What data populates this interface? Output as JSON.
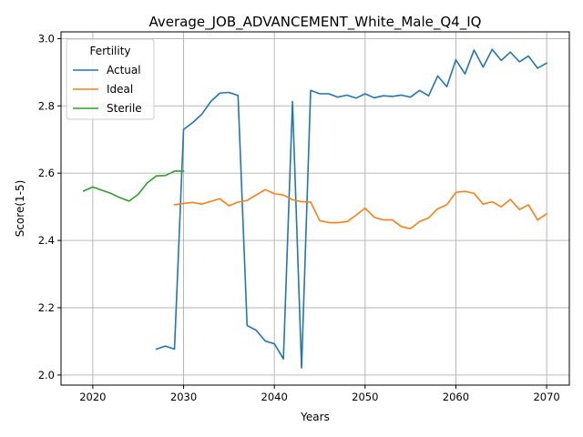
{
  "chart_data": {
    "type": "line",
    "title": "Average_JOB_ADVANCEMENT_White_Male_Q4_IQ",
    "xlabel": "Years",
    "ylabel": "Score(1-5)",
    "xlim": [
      2016.5,
      2072.5
    ],
    "ylim": [
      1.97,
      3.02
    ],
    "xticks": [
      2020,
      2030,
      2040,
      2050,
      2060,
      2070
    ],
    "yticks": [
      2.0,
      2.2,
      2.4,
      2.6,
      2.8,
      3.0
    ],
    "xtick_labels": [
      "2020",
      "2030",
      "2040",
      "2050",
      "2060",
      "2070"
    ],
    "ytick_labels": [
      "2.0",
      "2.2",
      "2.4",
      "2.6",
      "2.8",
      "3.0"
    ],
    "grid": true,
    "legend": {
      "title": "Fertility",
      "placement": "top-left"
    },
    "series": [
      {
        "name": "Actual",
        "color": "#1f77b4",
        "x": [
          2027,
          2028,
          2029,
          2030,
          2031,
          2032,
          2033,
          2034,
          2035,
          2036,
          2037,
          2038,
          2039,
          2040,
          2041,
          2042,
          2043,
          2044,
          2045,
          2046,
          2047,
          2048,
          2049,
          2050,
          2051,
          2052,
          2053,
          2054,
          2055,
          2056,
          2057,
          2058,
          2059,
          2060,
          2061,
          2062,
          2063,
          2064,
          2065,
          2066,
          2067,
          2068,
          2069,
          2070
        ],
        "y": [
          2.077,
          2.086,
          2.077,
          2.73,
          2.75,
          2.775,
          2.813,
          2.838,
          2.84,
          2.831,
          2.147,
          2.133,
          2.101,
          2.093,
          2.048,
          2.813,
          2.021,
          2.846,
          2.836,
          2.836,
          2.826,
          2.832,
          2.823,
          2.836,
          2.824,
          2.83,
          2.828,
          2.832,
          2.826,
          2.846,
          2.83,
          2.889,
          2.857,
          2.937,
          2.895,
          2.966,
          2.915,
          2.968,
          2.935,
          2.96,
          2.931,
          2.948,
          2.912,
          2.927
        ]
      },
      {
        "name": "Ideal",
        "color": "#ff7f0e",
        "x": [
          2029,
          2030,
          2031,
          2032,
          2033,
          2034,
          2035,
          2036,
          2037,
          2038,
          2039,
          2040,
          2041,
          2042,
          2043,
          2044,
          2045,
          2046,
          2047,
          2048,
          2049,
          2050,
          2051,
          2052,
          2053,
          2054,
          2055,
          2056,
          2057,
          2058,
          2059,
          2060,
          2061,
          2062,
          2063,
          2064,
          2065,
          2066,
          2067,
          2068,
          2069,
          2070
        ],
        "y": [
          2.506,
          2.51,
          2.513,
          2.508,
          2.516,
          2.524,
          2.503,
          2.514,
          2.519,
          2.535,
          2.551,
          2.539,
          2.535,
          2.521,
          2.515,
          2.514,
          2.459,
          2.453,
          2.453,
          2.456,
          2.475,
          2.496,
          2.469,
          2.461,
          2.461,
          2.441,
          2.435,
          2.456,
          2.467,
          2.494,
          2.506,
          2.543,
          2.546,
          2.54,
          2.508,
          2.515,
          2.5,
          2.522,
          2.492,
          2.506,
          2.461,
          2.479
        ]
      },
      {
        "name": "Sterile",
        "color": "#2ca02c",
        "x": [
          2019,
          2020,
          2021,
          2022,
          2023,
          2024,
          2025,
          2026,
          2027,
          2028,
          2029,
          2030
        ],
        "y": [
          2.547,
          2.559,
          2.549,
          2.54,
          2.527,
          2.517,
          2.537,
          2.571,
          2.592,
          2.593,
          2.606,
          2.606
        ]
      }
    ]
  }
}
